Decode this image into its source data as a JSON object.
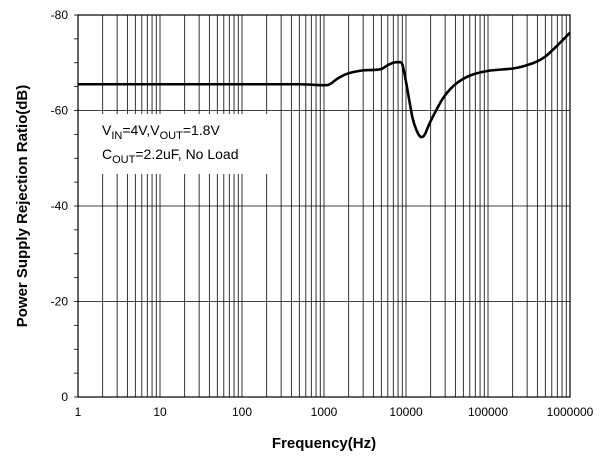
{
  "chart_data": {
    "type": "line",
    "xlabel": "Frequency(Hz)",
    "ylabel": "Power Supply Rejection Ratio(dB)",
    "x_scale": "log",
    "xlim": [
      1,
      1000000
    ],
    "ylim": [
      0,
      -80
    ],
    "y_inverted": true,
    "grid": true,
    "x_ticks": [
      "1",
      "10",
      "100",
      "1000",
      "10000",
      "100000",
      "1000000"
    ],
    "y_ticks": [
      "0",
      "-20",
      "-40",
      "-60",
      "-80"
    ],
    "annotation": {
      "line1": {
        "v": "V",
        "in_sub": "IN",
        "mid": "=4V,V",
        "out_sub": "OUT",
        "end": "=1.8V"
      },
      "line2": {
        "c": "C",
        "out_sub": "OUT",
        "end": "=2.2uF, No Load"
      }
    },
    "series": [
      {
        "color": "#000000",
        "x": [
          1,
          10,
          100,
          500,
          1000,
          1200,
          1500,
          2000,
          3000,
          4000,
          5000,
          6000,
          7000,
          8000,
          9000,
          10000,
          11000,
          12000,
          13000,
          14000,
          15000,
          16000,
          17000,
          18000,
          20000,
          25000,
          30000,
          40000,
          60000,
          100000,
          200000,
          300000,
          400000,
          500000,
          600000,
          700000,
          800000,
          900000,
          1000000
        ],
        "y": [
          -65.5,
          -65.5,
          -65.5,
          -65.5,
          -65.3,
          -65.6,
          -66.8,
          -67.8,
          -68.4,
          -68.5,
          -68.7,
          -69.5,
          -70,
          -70.1,
          -69.7,
          -66,
          -62,
          -58.5,
          -56.5,
          -55.2,
          -54.5,
          -54.5,
          -55,
          -56,
          -57.8,
          -61,
          -63.2,
          -65.5,
          -67.3,
          -68.3,
          -68.8,
          -69.5,
          -70.3,
          -71.3,
          -72.5,
          -73.6,
          -74.6,
          -75.5,
          -76.3
        ]
      }
    ]
  }
}
